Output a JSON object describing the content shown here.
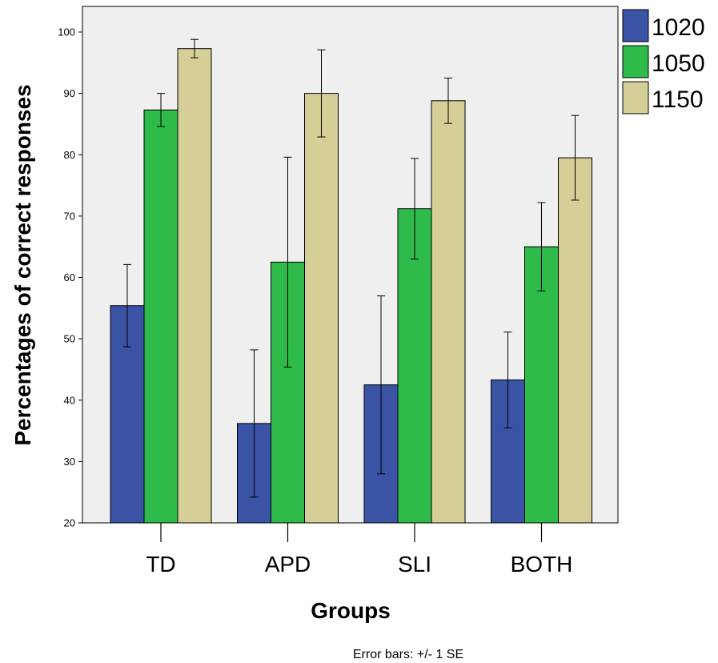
{
  "chart_data": {
    "type": "bar",
    "categories": [
      "TD",
      "APD",
      "SLI",
      "BOTH"
    ],
    "series": [
      {
        "name": "1020",
        "color": "#3a53a4",
        "values": [
          55.4,
          36.2,
          42.5,
          43.3
        ],
        "errors": [
          6.7,
          12.0,
          14.5,
          7.8
        ]
      },
      {
        "name": "1050",
        "color": "#2ebb4a",
        "values": [
          87.3,
          62.5,
          71.2,
          65.0
        ],
        "errors": [
          2.7,
          17.1,
          8.2,
          7.2
        ]
      },
      {
        "name": "1150",
        "color": "#d5ce97",
        "values": [
          97.3,
          90.0,
          88.8,
          79.5
        ],
        "errors": [
          1.5,
          7.1,
          3.7,
          6.9
        ]
      }
    ],
    "xlabel": "Groups",
    "ylabel": "Percentages of correct responses",
    "ylim": [
      20,
      100
    ],
    "yticks": [
      20,
      30,
      40,
      50,
      60,
      70,
      80,
      90,
      100
    ],
    "grid": false,
    "legend_position": "right",
    "note": "Error bars: +/- 1 SE",
    "colors": {
      "plot_background": "#efefef",
      "axis": "#000000"
    }
  }
}
